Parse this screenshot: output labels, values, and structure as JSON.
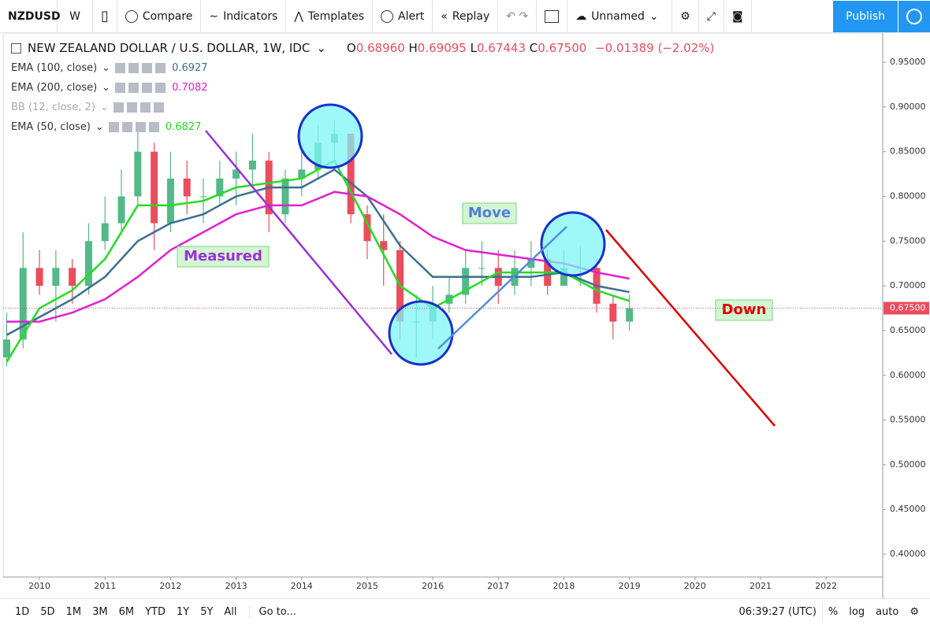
{
  "toolbar": {
    "symbol": "NZDUSD",
    "interval": "W",
    "buttons": [
      "Compare",
      "Indicators",
      "Templates",
      "Alert",
      "Replay"
    ],
    "layout_name": "Unnamed",
    "publish": "Publish"
  },
  "bottom_bar": {
    "ranges": [
      "1D",
      "5D",
      "1M",
      "3M",
      "6M",
      "YTD",
      "1Y",
      "5Y",
      "All"
    ],
    "goto": "Go to...",
    "clock": "06:39:27 (UTC)",
    "options": [
      "%",
      "log",
      "auto"
    ]
  },
  "chart_data": {
    "type": "candlestick",
    "title": "NEW ZEALAND DOLLAR / U.S. DOLLAR, 1W, IDC",
    "ohlc_legend": {
      "o": "O",
      "open": "0.68960",
      "h": "H",
      "high": "0.69095",
      "l": "L",
      "low": "0.67443",
      "c": "C",
      "close": "0.67500",
      "change": "−0.01389 (−2.02%)"
    },
    "up_color": "#53b987",
    "down_color": "#eb4d5c",
    "x": [
      2009.5,
      2009.75,
      2010.0,
      2010.25,
      2010.5,
      2010.75,
      2011.0,
      2011.25,
      2011.5,
      2011.75,
      2012.0,
      2012.25,
      2012.5,
      2012.75,
      2013.0,
      2013.25,
      2013.5,
      2013.75,
      2014.0,
      2014.25,
      2014.5,
      2014.75,
      2015.0,
      2015.25,
      2015.5,
      2015.75,
      2016.0,
      2016.25,
      2016.5,
      2016.75,
      2017.0,
      2017.25,
      2017.5,
      2017.75,
      2018.0,
      2018.25,
      2018.5,
      2018.75,
      2019.0
    ],
    "open": [
      0.62,
      0.64,
      0.72,
      0.7,
      0.72,
      0.7,
      0.75,
      0.77,
      0.8,
      0.85,
      0.77,
      0.82,
      0.8,
      0.8,
      0.82,
      0.83,
      0.84,
      0.78,
      0.82,
      0.83,
      0.86,
      0.87,
      0.78,
      0.75,
      0.74,
      0.66,
      0.66,
      0.68,
      0.69,
      0.72,
      0.72,
      0.7,
      0.72,
      0.73,
      0.7,
      0.72,
      0.72,
      0.68,
      0.66
    ],
    "high": [
      0.67,
      0.76,
      0.74,
      0.74,
      0.73,
      0.77,
      0.8,
      0.83,
      0.88,
      0.86,
      0.85,
      0.84,
      0.82,
      0.84,
      0.85,
      0.87,
      0.85,
      0.83,
      0.85,
      0.88,
      0.885,
      0.87,
      0.79,
      0.78,
      0.75,
      0.69,
      0.7,
      0.71,
      0.74,
      0.75,
      0.74,
      0.74,
      0.75,
      0.74,
      0.74,
      0.745,
      0.73,
      0.69,
      0.69
    ],
    "low": [
      0.61,
      0.63,
      0.69,
      0.66,
      0.68,
      0.69,
      0.74,
      0.76,
      0.79,
      0.74,
      0.76,
      0.78,
      0.77,
      0.79,
      0.79,
      0.81,
      0.76,
      0.77,
      0.8,
      0.82,
      0.84,
      0.77,
      0.73,
      0.7,
      0.64,
      0.62,
      0.64,
      0.67,
      0.68,
      0.7,
      0.68,
      0.69,
      0.7,
      0.69,
      0.7,
      0.7,
      0.67,
      0.64,
      0.65
    ],
    "close": [
      0.64,
      0.72,
      0.7,
      0.72,
      0.7,
      0.75,
      0.77,
      0.8,
      0.85,
      0.77,
      0.82,
      0.8,
      0.8,
      0.82,
      0.83,
      0.84,
      0.78,
      0.82,
      0.83,
      0.86,
      0.87,
      0.78,
      0.75,
      0.74,
      0.66,
      0.66,
      0.68,
      0.69,
      0.72,
      0.72,
      0.7,
      0.72,
      0.73,
      0.7,
      0.72,
      0.72,
      0.68,
      0.66,
      0.675
    ],
    "indicators": [
      {
        "name": "EMA (100, close)",
        "color": "#3d6f91",
        "value_label": "0.6927",
        "x": [
          2009.5,
          2010.0,
          2010.5,
          2011.0,
          2011.5,
          2012.0,
          2012.5,
          2013.0,
          2013.5,
          2014.0,
          2014.5,
          2015.0,
          2015.5,
          2016.0,
          2016.5,
          2017.0,
          2017.5,
          2018.0,
          2018.5,
          2019.0
        ],
        "values": [
          0.645,
          0.665,
          0.685,
          0.71,
          0.75,
          0.77,
          0.78,
          0.8,
          0.81,
          0.81,
          0.83,
          0.8,
          0.745,
          0.71,
          0.71,
          0.71,
          0.71,
          0.715,
          0.7,
          0.693
        ]
      },
      {
        "name": "EMA (200, close)",
        "color": "#e020d0",
        "value_label": "0.7082",
        "x": [
          2009.5,
          2010.0,
          2010.5,
          2011.0,
          2011.5,
          2012.0,
          2012.5,
          2013.0,
          2013.5,
          2014.0,
          2014.5,
          2015.0,
          2015.5,
          2016.0,
          2016.5,
          2017.0,
          2017.5,
          2018.0,
          2018.5,
          2019.0
        ],
        "values": [
          0.66,
          0.66,
          0.67,
          0.685,
          0.71,
          0.74,
          0.76,
          0.78,
          0.79,
          0.79,
          0.805,
          0.8,
          0.78,
          0.755,
          0.74,
          0.735,
          0.73,
          0.725,
          0.715,
          0.708
        ]
      },
      {
        "name": "BB (12, close, 2)",
        "hidden": true
      },
      {
        "name": "EMA (50, close)",
        "color": "#22dd22",
        "value_label": "0.6827",
        "x": [
          2009.5,
          2010.0,
          2010.5,
          2011.0,
          2011.5,
          2012.0,
          2012.5,
          2013.0,
          2013.5,
          2014.0,
          2014.5,
          2015.0,
          2015.5,
          2016.0,
          2016.5,
          2017.0,
          2017.5,
          2018.0,
          2018.5,
          2019.0
        ],
        "values": [
          0.615,
          0.675,
          0.695,
          0.73,
          0.79,
          0.79,
          0.795,
          0.81,
          0.815,
          0.82,
          0.84,
          0.77,
          0.7,
          0.675,
          0.695,
          0.715,
          0.715,
          0.715,
          0.695,
          0.683
        ]
      }
    ],
    "last_price": {
      "value": 0.675,
      "label": "0.67500"
    },
    "annotations": [
      {
        "text": "Measured",
        "color": "#9b30d9"
      },
      {
        "text": "Move",
        "color": "#4f7fdc"
      },
      {
        "text": "Down",
        "color": "#e00000"
      }
    ],
    "xlim": [
      2009.446,
      2022.864
    ],
    "xticks": [
      2010,
      2011,
      2012,
      2013,
      2014,
      2015,
      2016,
      2017,
      2018,
      2019,
      2020,
      2021,
      2022
    ],
    "ylim": [
      0.3745,
      0.9826
    ],
    "yticks": [
      {
        "value": 0.4,
        "label": "0.40000"
      },
      {
        "value": 0.45,
        "label": "0.45000"
      },
      {
        "value": 0.5,
        "label": "0.50000"
      },
      {
        "value": 0.55,
        "label": "0.55000"
      },
      {
        "value": 0.6,
        "label": "0.60000"
      },
      {
        "value": 0.65,
        "label": "0.65000"
      },
      {
        "value": 0.7,
        "label": "0.70000"
      },
      {
        "value": 0.75,
        "label": "0.75000"
      },
      {
        "value": 0.8,
        "label": "0.80000"
      },
      {
        "value": 0.85,
        "label": "0.85000"
      },
      {
        "value": 0.9,
        "label": "0.90000"
      },
      {
        "value": 0.95,
        "label": "0.95000"
      }
    ],
    "grid": false
  }
}
